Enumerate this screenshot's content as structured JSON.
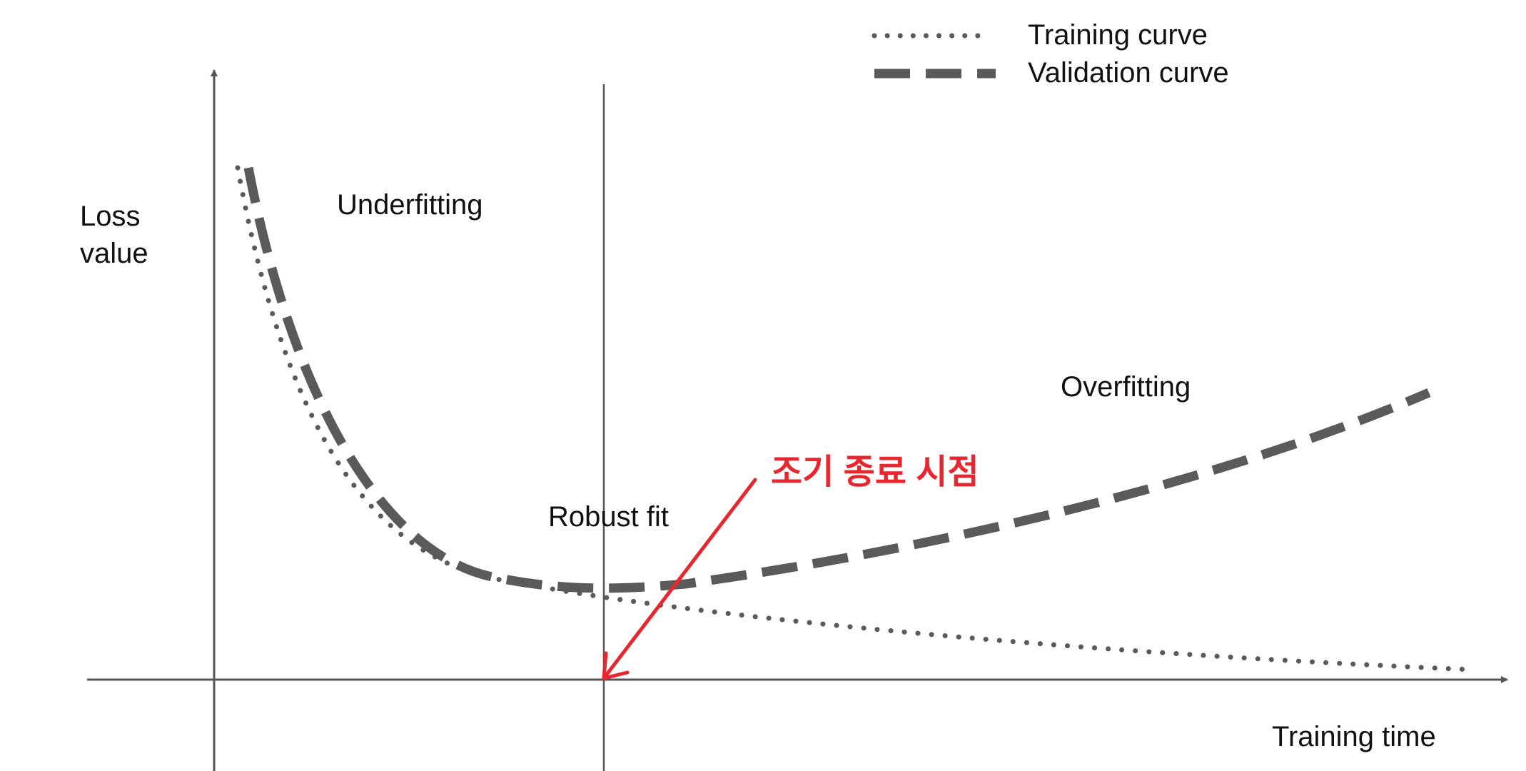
{
  "legend": {
    "training_label": "Training curve",
    "validation_label": "Validation curve"
  },
  "axes": {
    "y_label_line1": "Loss",
    "y_label_line2": "value",
    "x_label": "Training time"
  },
  "regions": {
    "underfitting": "Underfitting",
    "robust_fit": "Robust fit",
    "overfitting": "Overfitting"
  },
  "annotation": {
    "text": "조기 종료 시점",
    "color": "#e8262e"
  },
  "colors": {
    "curve": "#5a5a5a",
    "axis": "#555555",
    "text": "#111111"
  }
}
